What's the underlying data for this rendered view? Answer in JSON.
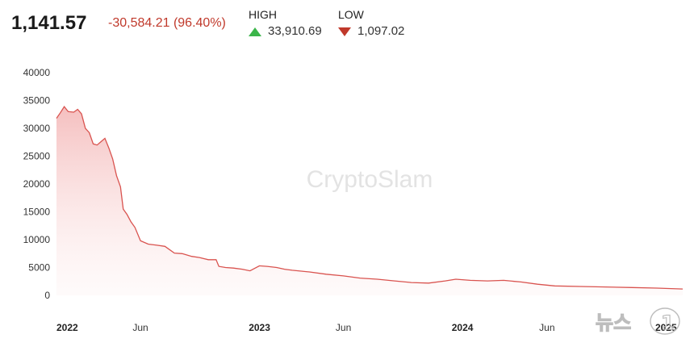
{
  "header": {
    "price": "1,141.57",
    "change": "-30,584.21 (96.40%)",
    "high_label": "HIGH",
    "high_value": "33,910.69",
    "low_label": "LOW",
    "low_value": "1,097.02"
  },
  "watermark": "CryptoSlam",
  "source_logo": "뉴스1",
  "colors": {
    "line": "#d9534f",
    "fill_top": "#f4b8b8",
    "negative": "#c0392b",
    "up": "#3bb54a"
  },
  "chart_data": {
    "type": "area",
    "title": "",
    "xlabel": "",
    "ylabel": "",
    "ylim": [
      0,
      40000
    ],
    "yticks": [
      "40000",
      "35000",
      "30000",
      "25000",
      "20000",
      "15000",
      "10000",
      "5000",
      "0"
    ],
    "ytick_values": [
      40000,
      35000,
      30000,
      25000,
      20000,
      15000,
      10000,
      5000,
      0
    ],
    "xlim": [
      "2022-01-01",
      "2025-01-31"
    ],
    "xticks": [
      {
        "label": "2022",
        "date": "2022-01-01",
        "bold": true
      },
      {
        "label": "Jun",
        "date": "2022-06-01",
        "bold": false
      },
      {
        "label": "2023",
        "date": "2023-01-01",
        "bold": true
      },
      {
        "label": "Jun",
        "date": "2023-06-01",
        "bold": false
      },
      {
        "label": "2024",
        "date": "2024-01-01",
        "bold": true
      },
      {
        "label": "Jun",
        "date": "2024-06-01",
        "bold": false
      },
      {
        "label": "2025",
        "date": "2025-01-01",
        "bold": true
      }
    ],
    "grid": false,
    "series": [
      {
        "points": [
          [
            "2022-01-01",
            31800
          ],
          [
            "2022-01-08",
            32800
          ],
          [
            "2022-01-15",
            33900
          ],
          [
            "2022-01-22",
            33000
          ],
          [
            "2022-02-01",
            32900
          ],
          [
            "2022-02-08",
            33400
          ],
          [
            "2022-02-15",
            32600
          ],
          [
            "2022-02-22",
            30000
          ],
          [
            "2022-03-01",
            29200
          ],
          [
            "2022-03-08",
            27200
          ],
          [
            "2022-03-15",
            27000
          ],
          [
            "2022-03-22",
            27600
          ],
          [
            "2022-03-29",
            28200
          ],
          [
            "2022-04-05",
            26500
          ],
          [
            "2022-04-12",
            24500
          ],
          [
            "2022-04-19",
            21500
          ],
          [
            "2022-04-26",
            19500
          ],
          [
            "2022-05-01",
            15500
          ],
          [
            "2022-05-08",
            14500
          ],
          [
            "2022-05-15",
            13200
          ],
          [
            "2022-05-22",
            12200
          ],
          [
            "2022-06-01",
            9800
          ],
          [
            "2022-06-15",
            9200
          ],
          [
            "2022-07-01",
            9000
          ],
          [
            "2022-07-15",
            8800
          ],
          [
            "2022-08-01",
            7600
          ],
          [
            "2022-08-15",
            7500
          ],
          [
            "2022-09-01",
            7000
          ],
          [
            "2022-09-15",
            6800
          ],
          [
            "2022-10-01",
            6400
          ],
          [
            "2022-10-15",
            6400
          ],
          [
            "2022-10-20",
            5200
          ],
          [
            "2022-11-01",
            5000
          ],
          [
            "2022-11-15",
            4900
          ],
          [
            "2022-12-01",
            4700
          ],
          [
            "2022-12-15",
            4400
          ],
          [
            "2023-01-01",
            5300
          ],
          [
            "2023-01-15",
            5200
          ],
          [
            "2023-02-01",
            5000
          ],
          [
            "2023-02-15",
            4700
          ],
          [
            "2023-03-01",
            4500
          ],
          [
            "2023-04-01",
            4200
          ],
          [
            "2023-05-01",
            3800
          ],
          [
            "2023-06-01",
            3500
          ],
          [
            "2023-07-01",
            3100
          ],
          [
            "2023-08-01",
            2900
          ],
          [
            "2023-09-01",
            2600
          ],
          [
            "2023-10-01",
            2300
          ],
          [
            "2023-11-01",
            2200
          ],
          [
            "2023-12-01",
            2600
          ],
          [
            "2023-12-20",
            2900
          ],
          [
            "2024-01-15",
            2700
          ],
          [
            "2024-02-15",
            2600
          ],
          [
            "2024-03-15",
            2700
          ],
          [
            "2024-04-15",
            2400
          ],
          [
            "2024-05-15",
            2000
          ],
          [
            "2024-06-15",
            1700
          ],
          [
            "2024-08-01",
            1600
          ],
          [
            "2024-09-15",
            1500
          ],
          [
            "2024-11-01",
            1400
          ],
          [
            "2024-12-15",
            1300
          ],
          [
            "2025-01-31",
            1150
          ]
        ]
      }
    ]
  }
}
